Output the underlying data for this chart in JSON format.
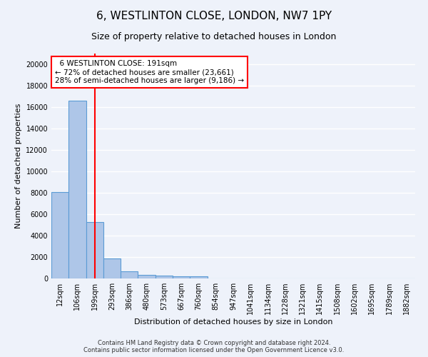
{
  "title": "6, WESTLINTON CLOSE, LONDON, NW7 1PY",
  "subtitle": "Size of property relative to detached houses in London",
  "xlabel": "Distribution of detached houses by size in London",
  "ylabel": "Number of detached properties",
  "bar_labels": [
    "12sqm",
    "106sqm",
    "199sqm",
    "293sqm",
    "386sqm",
    "480sqm",
    "573sqm",
    "667sqm",
    "760sqm",
    "854sqm",
    "947sqm",
    "1041sqm",
    "1134sqm",
    "1228sqm",
    "1321sqm",
    "1415sqm",
    "1508sqm",
    "1602sqm",
    "1695sqm",
    "1789sqm",
    "1882sqm"
  ],
  "bar_values": [
    8100,
    16600,
    5300,
    1850,
    700,
    350,
    270,
    200,
    180,
    0,
    0,
    0,
    0,
    0,
    0,
    0,
    0,
    0,
    0,
    0,
    0
  ],
  "bar_color": "#aec6e8",
  "bar_edge_color": "#5b9bd5",
  "vline_x": 2,
  "vline_color": "red",
  "annotation_text": "  6 WESTLINTON CLOSE: 191sqm  \n← 72% of detached houses are smaller (23,661)\n28% of semi-detached houses are larger (9,186) →",
  "annotation_box_color": "white",
  "annotation_box_edge_color": "red",
  "ylim": [
    0,
    21000
  ],
  "yticks": [
    0,
    2000,
    4000,
    6000,
    8000,
    10000,
    12000,
    14000,
    16000,
    18000,
    20000
  ],
  "footnote": "Contains HM Land Registry data © Crown copyright and database right 2024.\nContains public sector information licensed under the Open Government Licence v3.0.",
  "background_color": "#eef2fa",
  "grid_color": "white",
  "title_fontsize": 11,
  "subtitle_fontsize": 9,
  "axis_label_fontsize": 8,
  "tick_fontsize": 7,
  "annot_fontsize": 7.5
}
